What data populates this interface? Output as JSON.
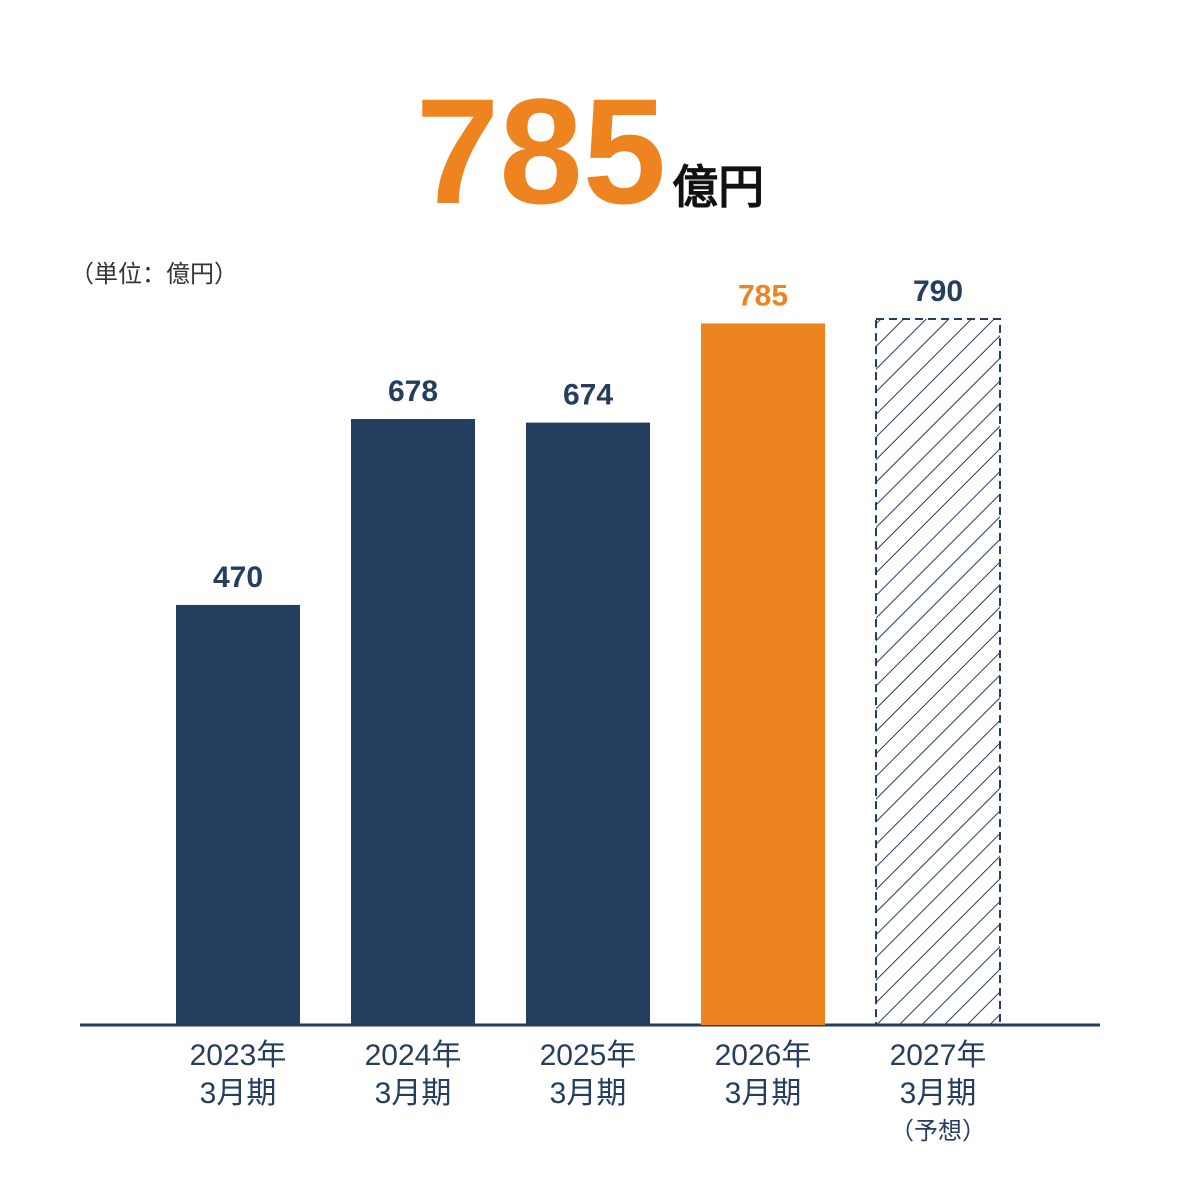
{
  "chart_data": {
    "type": "bar",
    "headline": {
      "value": 785,
      "unit": "億円"
    },
    "unit_label": "（単位：億円）",
    "categories": [
      [
        "2023年",
        "3月期"
      ],
      [
        "2024年",
        "3月期"
      ],
      [
        "2025年",
        "3月期"
      ],
      [
        "2026年",
        "3月期"
      ],
      [
        "2027年",
        "3月期",
        "（予想）"
      ]
    ],
    "values": [
      470,
      678,
      674,
      785,
      790
    ],
    "colors": [
      "#253d5e",
      "#253d5e",
      "#253d5e",
      "#ee8420",
      "#253d5e"
    ],
    "hatched": [
      false,
      false,
      false,
      false,
      true
    ],
    "headline_color": "#ee8420",
    "ylim": [
      0,
      800
    ]
  }
}
